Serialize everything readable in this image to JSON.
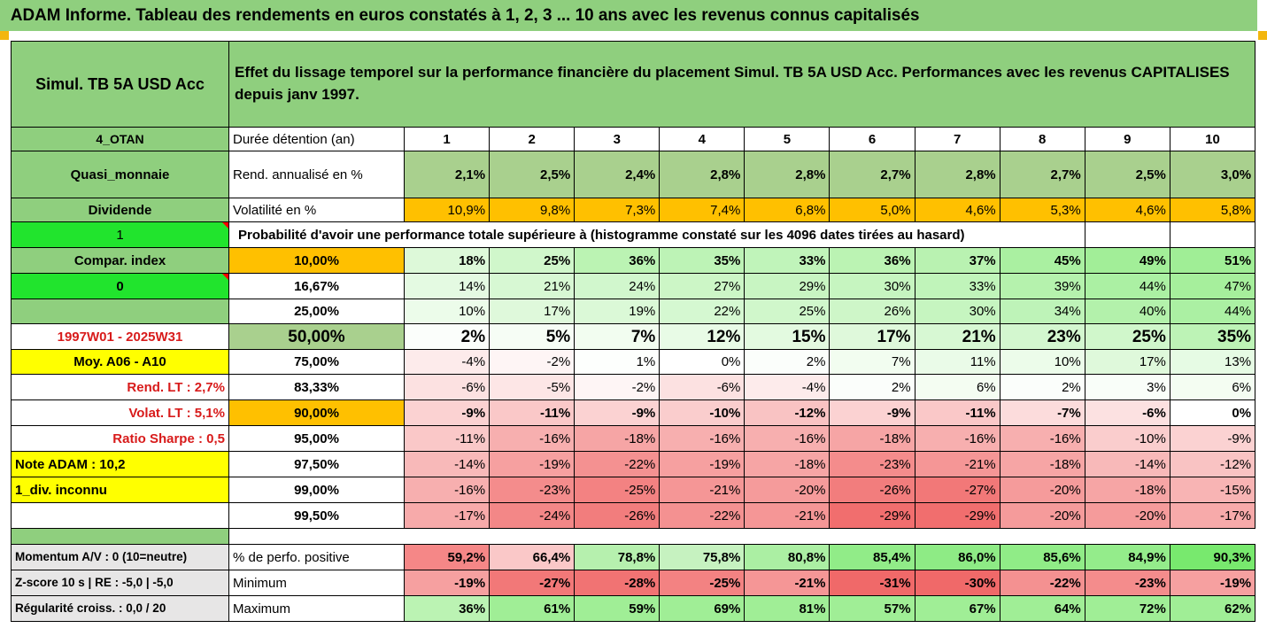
{
  "title": "ADAM Informe. Tableau des rendements en euros constatés à 1, 2, 3 ... 10 ans avec les revenus connus capitalisés",
  "header": {
    "fund": "Simul. TB 5A USD Acc",
    "description": "Effet du lissage temporel sur la performance financière du placement Simul. TB 5A USD Acc. Performances avec les revenus CAPITALISES depuis janv 1997."
  },
  "left": {
    "code": "4_OTAN",
    "category": "Quasi_monnaie",
    "dividend": "Dividende",
    "selector1": "1",
    "compar": "Compar. index",
    "selector0": "0",
    "period": "1997W01 - 2025W31",
    "moy": "Moy. A06 - A10",
    "rend_lt": "Rend. LT :    2,7%",
    "volat_lt": "Volat. LT :   5,1%",
    "sharpe": "Ratio Sharpe :    0,5",
    "note": "Note ADAM : 10,2",
    "div": "1_div. inconnu",
    "momentum": "Momentum A/V : 0 (10=neutre)",
    "zscore": "Z-score 10 s  |  RE : -5,0  |  -5,0",
    "regularite": "Régularité croiss. : 0,0 / 20"
  },
  "rows": {
    "duree_label": "Durée détention (an)",
    "years": [
      "1",
      "2",
      "3",
      "4",
      "5",
      "6",
      "7",
      "8",
      "9",
      "10"
    ],
    "rend_label": "Rend. annualisé en %",
    "rend": [
      "2,1%",
      "2,5%",
      "2,4%",
      "2,8%",
      "2,8%",
      "2,7%",
      "2,8%",
      "2,7%",
      "2,5%",
      "3,0%"
    ],
    "vol_label": "Volatilité en %",
    "vol": [
      "10,9%",
      "9,8%",
      "7,3%",
      "7,4%",
      "6,8%",
      "5,0%",
      "4,6%",
      "5,3%",
      "4,6%",
      "5,8%"
    ],
    "prob_label": "Probabilité d'avoir une performance totale supérieure à (histogramme constaté sur les 4096 dates tirées au hasard)"
  },
  "percentiles": [
    {
      "label": "10,00%",
      "values": [
        "18%",
        "25%",
        "36%",
        "35%",
        "33%",
        "36%",
        "37%",
        "45%",
        "49%",
        "51%"
      ]
    },
    {
      "label": "16,67%",
      "values": [
        "14%",
        "21%",
        "24%",
        "27%",
        "29%",
        "30%",
        "33%",
        "39%",
        "44%",
        "47%"
      ]
    },
    {
      "label": "25,00%",
      "values": [
        "10%",
        "17%",
        "19%",
        "22%",
        "25%",
        "26%",
        "30%",
        "34%",
        "40%",
        "44%"
      ]
    },
    {
      "label": "50,00%",
      "values": [
        "2%",
        "5%",
        "7%",
        "12%",
        "15%",
        "17%",
        "21%",
        "23%",
        "25%",
        "35%"
      ]
    },
    {
      "label": "75,00%",
      "values": [
        "-4%",
        "-2%",
        "1%",
        "0%",
        "2%",
        "7%",
        "11%",
        "10%",
        "17%",
        "13%"
      ]
    },
    {
      "label": "83,33%",
      "values": [
        "-6%",
        "-5%",
        "-2%",
        "-6%",
        "-4%",
        "2%",
        "6%",
        "2%",
        "3%",
        "6%"
      ]
    },
    {
      "label": "90,00%",
      "values": [
        "-9%",
        "-11%",
        "-9%",
        "-10%",
        "-12%",
        "-9%",
        "-11%",
        "-7%",
        "-6%",
        "0%"
      ]
    },
    {
      "label": "95,00%",
      "values": [
        "-11%",
        "-16%",
        "-18%",
        "-16%",
        "-16%",
        "-18%",
        "-16%",
        "-16%",
        "-10%",
        "-9%"
      ]
    },
    {
      "label": "97,50%",
      "values": [
        "-14%",
        "-19%",
        "-22%",
        "-19%",
        "-18%",
        "-23%",
        "-21%",
        "-18%",
        "-14%",
        "-12%"
      ]
    },
    {
      "label": "99,00%",
      "values": [
        "-16%",
        "-23%",
        "-25%",
        "-21%",
        "-20%",
        "-26%",
        "-27%",
        "-20%",
        "-18%",
        "-15%"
      ]
    },
    {
      "label": "99,50%",
      "values": [
        "-17%",
        "-24%",
        "-26%",
        "-22%",
        "-21%",
        "-29%",
        "-29%",
        "-20%",
        "-20%",
        "-17%"
      ]
    }
  ],
  "summary": [
    {
      "label": "% de perfo. positive",
      "values": [
        "59,2%",
        "66,4%",
        "78,8%",
        "75,8%",
        "80,8%",
        "85,4%",
        "86,0%",
        "85,6%",
        "84,9%",
        "90,3%"
      ]
    },
    {
      "label": "Minimum",
      "values": [
        "-19%",
        "-27%",
        "-28%",
        "-25%",
        "-21%",
        "-31%",
        "-30%",
        "-22%",
        "-23%",
        "-19%"
      ]
    },
    {
      "label": "Maximum",
      "values": [
        "36%",
        "61%",
        "59%",
        "69%",
        "81%",
        "57%",
        "67%",
        "64%",
        "72%",
        "62%"
      ]
    }
  ],
  "colors": {
    "header_green": "#8fcf7e",
    "bright_green": "#21e42d",
    "yellow": "#ffff00",
    "orange": "#ffc000",
    "olive": "#a9d08e",
    "gray": "#e7e6e6",
    "label_red": "#d81b1b"
  }
}
